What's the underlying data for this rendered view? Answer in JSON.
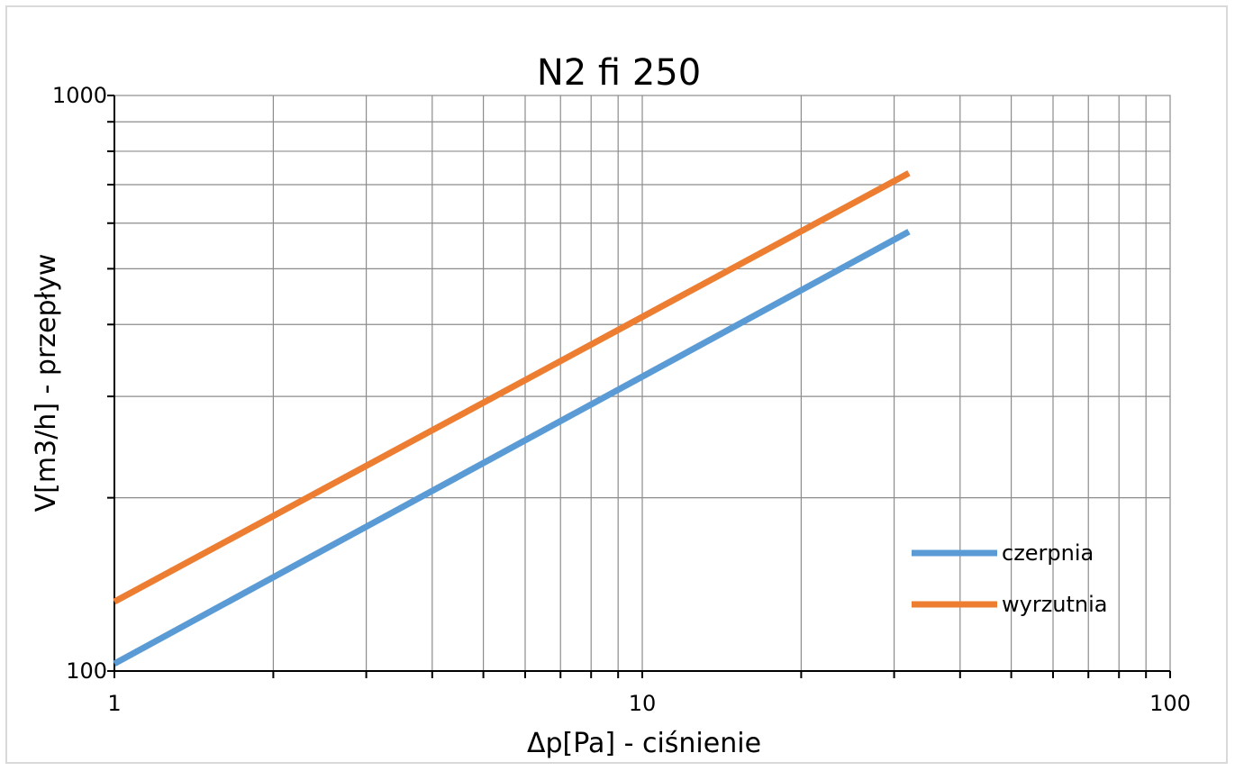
{
  "chart_data": {
    "type": "line",
    "title": "N2 fi 250",
    "xlabel": "Δp[Pa] - ciśnienie",
    "ylabel": "V[m3/h] - przepływ",
    "x_scale": "log",
    "y_scale": "log",
    "xlim": [
      1,
      100
    ],
    "ylim": [
      100,
      1000
    ],
    "x_ticks": [
      {
        "value": 1,
        "label": "1"
      },
      {
        "value": 10,
        "label": "10"
      },
      {
        "value": 100,
        "label": "100"
      }
    ],
    "y_ticks": [
      {
        "value": 100,
        "label": "100"
      },
      {
        "value": 1000,
        "label": "1000"
      }
    ],
    "grid": true,
    "legend_position": "bottom-right",
    "series": [
      {
        "name": "czerpnia",
        "color": "#5b9bd5",
        "x": [
          1,
          32
        ],
        "y": [
          103,
          580
        ]
      },
      {
        "name": "wyrzutnia",
        "color": "#ed7d31",
        "x": [
          1,
          32
        ],
        "y": [
          132,
          733
        ]
      }
    ]
  }
}
